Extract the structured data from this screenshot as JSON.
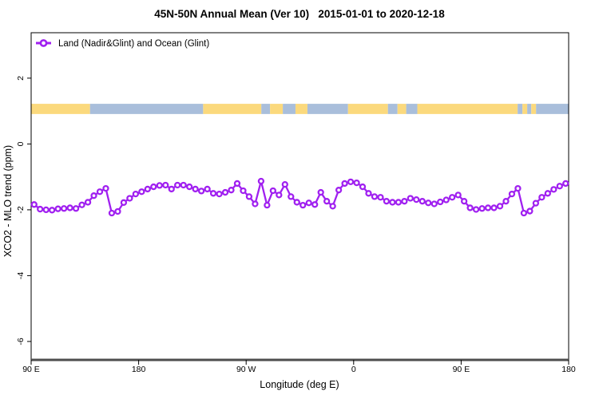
{
  "title": "45N-50N Annual Mean (Ver 10)   2015-01-01 to 2020-12-18",
  "legend": {
    "label": "Land (Nadir&Glint) and Ocean (Glint)"
  },
  "colors": {
    "series": "#A020F0",
    "marker_fill": "#FFFFFF",
    "land": "#FBD97D",
    "ocean": "#A9BEDB",
    "axis": "#000000",
    "x_axis_line": "#4D4D4D",
    "text": "#000000"
  },
  "chart_data": {
    "type": "line",
    "title": "45N-50N Annual Mean (Ver 10)   2015-01-01 to 2020-12-18",
    "xlabel": "Longitude (deg E)",
    "ylabel": "XCO2 - MLO trend (ppm)",
    "xlim": [
      90,
      540
    ],
    "ylim": [
      -6.56,
      3.38
    ],
    "grid": false,
    "legend_position": "top-left",
    "x_ticks": [
      {
        "lon": 90,
        "label": "90 E"
      },
      {
        "lon": 180,
        "label": "180"
      },
      {
        "lon": 270,
        "label": "90 W"
      },
      {
        "lon": 360,
        "label": "0"
      },
      {
        "lon": 450,
        "label": "90 E"
      },
      {
        "lon": 540,
        "label": "180"
      }
    ],
    "y_ticks": [
      {
        "v": 2,
        "label": "2"
      },
      {
        "v": 0,
        "label": "0"
      },
      {
        "v": -2,
        "label": "-2"
      },
      {
        "v": -4,
        "label": "-4"
      },
      {
        "v": -6,
        "label": "-6"
      }
    ],
    "series": [
      {
        "name": "Land (Nadir&Glint) and Ocean (Glint)",
        "marker": "open-circle",
        "x_start": 92.5,
        "x_step": 5,
        "y": [
          -1.84,
          -1.98,
          -2.0,
          -2.01,
          -1.97,
          -1.96,
          -1.94,
          -1.96,
          -1.85,
          -1.77,
          -1.57,
          -1.45,
          -1.35,
          -2.1,
          -2.05,
          -1.78,
          -1.65,
          -1.52,
          -1.45,
          -1.37,
          -1.3,
          -1.26,
          -1.25,
          -1.37,
          -1.25,
          -1.25,
          -1.3,
          -1.37,
          -1.43,
          -1.37,
          -1.5,
          -1.52,
          -1.47,
          -1.4,
          -1.2,
          -1.42,
          -1.6,
          -1.82,
          -1.13,
          -1.86,
          -1.42,
          -1.55,
          -1.23,
          -1.6,
          -1.77,
          -1.86,
          -1.79,
          -1.84,
          -1.47,
          -1.74,
          -1.89,
          -1.4,
          -1.2,
          -1.15,
          -1.18,
          -1.3,
          -1.5,
          -1.6,
          -1.62,
          -1.74,
          -1.77,
          -1.77,
          -1.74,
          -1.65,
          -1.69,
          -1.74,
          -1.79,
          -1.82,
          -1.76,
          -1.7,
          -1.62,
          -1.55,
          -1.74,
          -1.94,
          -1.99,
          -1.96,
          -1.94,
          -1.94,
          -1.89,
          -1.74,
          -1.52,
          -1.35,
          -2.1,
          -2.04,
          -1.8,
          -1.62,
          -1.5,
          -1.38,
          -1.28,
          -1.2
        ]
      }
    ],
    "surface_strip": {
      "description": "land/ocean map band of the 45N-50N latitude strip",
      "y_top": 1.22,
      "y_bottom": 0.91,
      "segments": [
        {
          "from": 90,
          "to": 139.3,
          "type": "land"
        },
        {
          "from": 139.3,
          "to": 234,
          "type": "ocean"
        },
        {
          "from": 234,
          "to": 282.7,
          "type": "land"
        },
        {
          "from": 282.7,
          "to": 290,
          "type": "ocean"
        },
        {
          "from": 290,
          "to": 300.7,
          "type": "land"
        },
        {
          "from": 300.7,
          "to": 311.3,
          "type": "ocean"
        },
        {
          "from": 311.3,
          "to": 321.3,
          "type": "land"
        },
        {
          "from": 321.3,
          "to": 355.3,
          "type": "ocean"
        },
        {
          "from": 355.3,
          "to": 388.7,
          "type": "land"
        },
        {
          "from": 388.7,
          "to": 396.7,
          "type": "ocean"
        },
        {
          "from": 396.7,
          "to": 404,
          "type": "land"
        },
        {
          "from": 404,
          "to": 413.3,
          "type": "ocean"
        },
        {
          "from": 413.3,
          "to": 497.3,
          "type": "land"
        },
        {
          "from": 497.3,
          "to": 501.3,
          "type": "ocean"
        },
        {
          "from": 501.3,
          "to": 505.3,
          "type": "land"
        },
        {
          "from": 505.3,
          "to": 508.7,
          "type": "ocean"
        },
        {
          "from": 508.7,
          "to": 512.7,
          "type": "land"
        },
        {
          "from": 512.7,
          "to": 540,
          "type": "ocean"
        }
      ]
    }
  }
}
